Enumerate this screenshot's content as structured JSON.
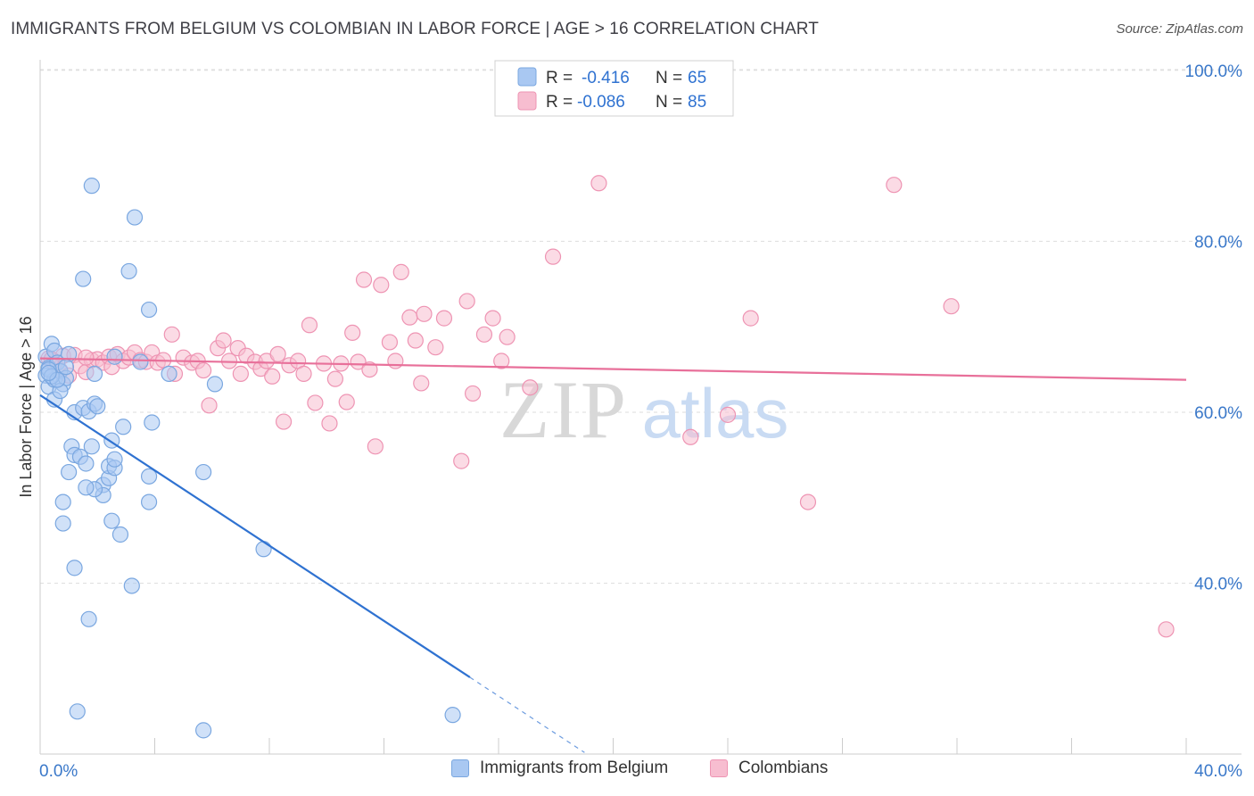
{
  "header": {
    "title": "IMMIGRANTS FROM BELGIUM VS COLOMBIAN IN LABOR FORCE | AGE > 16 CORRELATION CHART",
    "source": "Source: ZipAtlas.com"
  },
  "colors": {
    "blue_fill": "#a9c8f2",
    "blue_stroke": "#7aa7e0",
    "blue_line": "#2f72d1",
    "pink_fill": "#f7bdd0",
    "pink_stroke": "#ee94b3",
    "pink_line": "#e8709a",
    "axis_label": "#3a78c9",
    "grid": "#dddddd"
  },
  "chart_data": {
    "type": "scatter",
    "title": "IMMIGRANTS FROM BELGIUM VS COLOMBIAN IN LABOR FORCE | AGE > 16 CORRELATION CHART",
    "xlabel": "",
    "ylabel": "In Labor Force | Age > 16",
    "xlim": [
      0,
      40
    ],
    "ylim": [
      20,
      102
    ],
    "x_tick_labels": [
      "0.0%",
      "40.0%"
    ],
    "y_ticks": [
      40,
      60,
      80,
      100
    ],
    "y_tick_labels": [
      "40.0%",
      "60.0%",
      "80.0%",
      "100.0%"
    ],
    "watermark": {
      "zip": "ZIP",
      "atlas": "atlas"
    },
    "legend": [
      {
        "r_label": "R =",
        "r_value": "-0.416",
        "n_label": "N =",
        "n_value": "65"
      },
      {
        "r_label": "R =",
        "r_value": "-0.086",
        "n_label": "N =",
        "n_value": "85"
      }
    ],
    "series": [
      {
        "name": "Immigrants from Belgium",
        "color": "blue",
        "trend": {
          "x0": 0.0,
          "y0": 62.0,
          "x1": 15.0,
          "y1": 29.0,
          "dash_to_x": 19.0
        },
        "points": [
          [
            0.2,
            66.5
          ],
          [
            0.3,
            65.2
          ],
          [
            0.4,
            68.0
          ],
          [
            0.5,
            67.2
          ],
          [
            0.6,
            65.8
          ],
          [
            0.2,
            64.3
          ],
          [
            0.3,
            63.0
          ],
          [
            0.5,
            63.8
          ],
          [
            0.7,
            64.8
          ],
          [
            0.8,
            63.3
          ],
          [
            0.9,
            64.0
          ],
          [
            1.2,
            60.0
          ],
          [
            1.5,
            60.5
          ],
          [
            1.7,
            60.1
          ],
          [
            1.8,
            86.5
          ],
          [
            1.9,
            61.0
          ],
          [
            1.9,
            64.5
          ],
          [
            3.3,
            82.8
          ],
          [
            1.5,
            75.6
          ],
          [
            3.1,
            76.5
          ],
          [
            3.8,
            72.0
          ],
          [
            0.5,
            61.5
          ],
          [
            0.7,
            62.5
          ],
          [
            1.1,
            56.0
          ],
          [
            1.2,
            55.0
          ],
          [
            1.0,
            53.0
          ],
          [
            1.4,
            54.8
          ],
          [
            1.6,
            54.0
          ],
          [
            1.8,
            56.0
          ],
          [
            2.2,
            51.5
          ],
          [
            2.4,
            52.3
          ],
          [
            2.2,
            50.3
          ],
          [
            2.4,
            53.7
          ],
          [
            2.6,
            53.5
          ],
          [
            2.5,
            56.7
          ],
          [
            2.6,
            54.5
          ],
          [
            2.9,
            58.3
          ],
          [
            3.9,
            58.8
          ],
          [
            3.8,
            52.5
          ],
          [
            3.8,
            49.5
          ],
          [
            5.7,
            53.0
          ],
          [
            6.1,
            63.3
          ],
          [
            4.5,
            64.5
          ],
          [
            2.6,
            66.5
          ],
          [
            1.9,
            51.0
          ],
          [
            1.6,
            51.2
          ],
          [
            0.8,
            49.5
          ],
          [
            0.8,
            47.0
          ],
          [
            2.5,
            47.3
          ],
          [
            2.8,
            45.7
          ],
          [
            1.2,
            41.8
          ],
          [
            3.2,
            39.7
          ],
          [
            1.7,
            35.8
          ],
          [
            7.8,
            44.0
          ],
          [
            1.3,
            25.0
          ],
          [
            5.7,
            22.8
          ],
          [
            14.4,
            24.6
          ],
          [
            0.3,
            65.0
          ],
          [
            0.4,
            64.2
          ],
          [
            1.0,
            66.8
          ],
          [
            0.6,
            63.8
          ],
          [
            0.9,
            65.3
          ],
          [
            2.0,
            60.7
          ],
          [
            3.5,
            65.9
          ],
          [
            0.3,
            64.6
          ]
        ]
      },
      {
        "name": "Colombians",
        "color": "pink",
        "trend": {
          "x0": 0.0,
          "y0": 66.3,
          "x1": 40.0,
          "y1": 63.8
        },
        "points": [
          [
            0.3,
            66.3
          ],
          [
            0.5,
            65.7
          ],
          [
            0.7,
            64.9
          ],
          [
            0.8,
            66.6
          ],
          [
            1.0,
            64.3
          ],
          [
            1.2,
            66.7
          ],
          [
            1.4,
            65.4
          ],
          [
            1.6,
            64.7
          ],
          [
            1.8,
            66.1
          ],
          [
            2.0,
            66.2
          ],
          [
            2.2,
            65.8
          ],
          [
            2.4,
            66.5
          ],
          [
            2.5,
            65.3
          ],
          [
            2.7,
            66.8
          ],
          [
            2.9,
            66.0
          ],
          [
            3.1,
            66.4
          ],
          [
            3.3,
            67.0
          ],
          [
            3.5,
            66.1
          ],
          [
            3.7,
            65.9
          ],
          [
            3.9,
            67.0
          ],
          [
            4.1,
            65.8
          ],
          [
            4.3,
            66.1
          ],
          [
            4.6,
            69.1
          ],
          [
            4.7,
            64.5
          ],
          [
            5.0,
            66.4
          ],
          [
            5.3,
            65.8
          ],
          [
            5.5,
            66.0
          ],
          [
            5.7,
            64.9
          ],
          [
            5.9,
            60.8
          ],
          [
            6.2,
            67.5
          ],
          [
            6.4,
            68.4
          ],
          [
            6.6,
            66.0
          ],
          [
            6.9,
            67.5
          ],
          [
            7.0,
            64.5
          ],
          [
            7.2,
            66.6
          ],
          [
            7.5,
            65.9
          ],
          [
            7.7,
            65.1
          ],
          [
            7.9,
            66.0
          ],
          [
            8.1,
            64.2
          ],
          [
            8.3,
            66.8
          ],
          [
            8.5,
            58.9
          ],
          [
            8.7,
            65.5
          ],
          [
            9.0,
            66.0
          ],
          [
            9.2,
            64.5
          ],
          [
            9.4,
            70.2
          ],
          [
            9.6,
            61.1
          ],
          [
            9.9,
            65.7
          ],
          [
            10.1,
            58.7
          ],
          [
            10.3,
            63.9
          ],
          [
            10.5,
            65.7
          ],
          [
            10.7,
            61.2
          ],
          [
            10.9,
            69.3
          ],
          [
            11.1,
            65.9
          ],
          [
            11.3,
            75.5
          ],
          [
            11.5,
            65.0
          ],
          [
            11.7,
            56.0
          ],
          [
            11.9,
            74.9
          ],
          [
            12.2,
            68.2
          ],
          [
            12.4,
            66.0
          ],
          [
            12.6,
            76.4
          ],
          [
            12.9,
            71.1
          ],
          [
            13.1,
            68.4
          ],
          [
            13.3,
            63.4
          ],
          [
            13.4,
            71.5
          ],
          [
            13.8,
            67.6
          ],
          [
            14.1,
            71.0
          ],
          [
            14.7,
            54.3
          ],
          [
            14.9,
            73.0
          ],
          [
            15.1,
            62.2
          ],
          [
            15.5,
            69.1
          ],
          [
            15.8,
            71.0
          ],
          [
            16.1,
            66.0
          ],
          [
            16.3,
            68.8
          ],
          [
            17.1,
            62.9
          ],
          [
            17.9,
            78.2
          ],
          [
            19.5,
            86.8
          ],
          [
            22.7,
            57.1
          ],
          [
            24.0,
            59.7
          ],
          [
            24.8,
            71.0
          ],
          [
            26.8,
            49.5
          ],
          [
            29.8,
            86.6
          ],
          [
            31.8,
            72.4
          ],
          [
            39.3,
            34.6
          ],
          [
            1.6,
            66.4
          ],
          [
            0.4,
            66.2
          ]
        ]
      }
    ]
  }
}
